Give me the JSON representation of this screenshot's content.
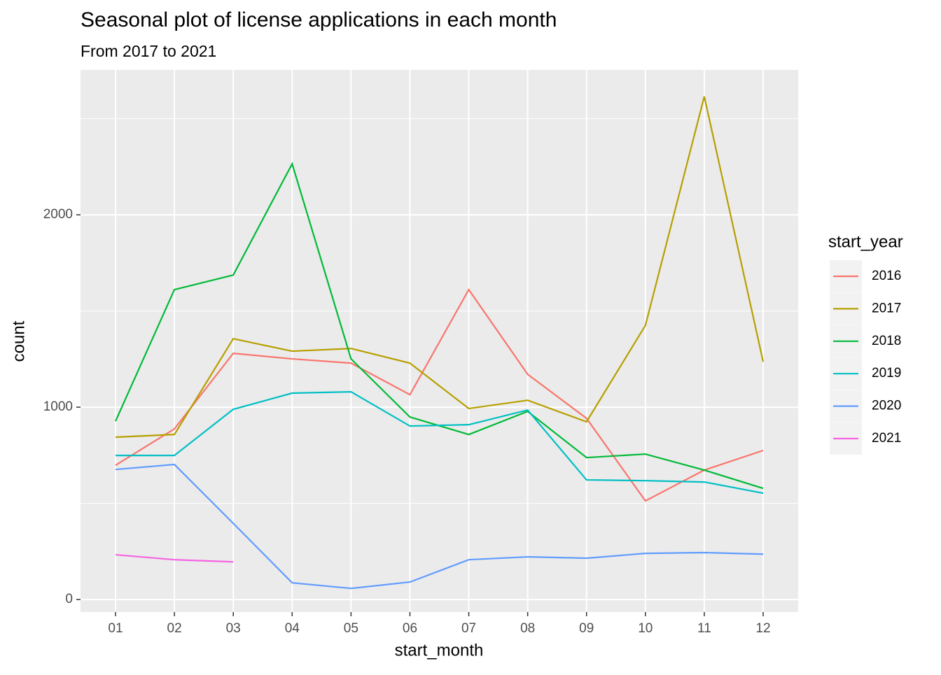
{
  "chart_data": {
    "type": "line",
    "title": "Seasonal plot of license applications in each month",
    "subtitle": "From 2017 to 2021",
    "x_label": "start_month",
    "y_label": "count",
    "legend_title": "start_year",
    "categories": [
      "01",
      "02",
      "03",
      "04",
      "05",
      "06",
      "07",
      "08",
      "09",
      "10",
      "11",
      "12"
    ],
    "series": [
      {
        "name": "2016",
        "color": "#F8766D",
        "values": [
          698,
          887,
          1280,
          1251,
          1229,
          1065,
          1611,
          1171,
          942,
          513,
          673,
          775
        ]
      },
      {
        "name": "2017",
        "color": "#B79F00",
        "values": [
          844,
          858,
          1356,
          1291,
          1305,
          1229,
          993,
          1036,
          924,
          1425,
          2615,
          1236
        ]
      },
      {
        "name": "2018",
        "color": "#00BA38",
        "values": [
          927,
          1611,
          1687,
          2265,
          1251,
          949,
          858,
          978,
          738,
          756,
          673,
          578
        ]
      },
      {
        "name": "2019",
        "color": "#00BFC4",
        "values": [
          749,
          749,
          989,
          1073,
          1080,
          902,
          909,
          985,
          622,
          618,
          611,
          553
        ]
      },
      {
        "name": "2020",
        "color": "#619CFF",
        "values": [
          676,
          702,
          396,
          87,
          58,
          91,
          207,
          222,
          215,
          240,
          244,
          236
        ]
      },
      {
        "name": "2021",
        "color": "#F564E3",
        "values": [
          233,
          207,
          196,
          null,
          null,
          null,
          null,
          null,
          null,
          null,
          null,
          null
        ]
      }
    ],
    "ylim": [
      -65,
      2753
    ],
    "yticks": [
      0,
      1000,
      2000
    ],
    "yminor": [
      500,
      1500,
      2500
    ],
    "grid": true,
    "legend": "right"
  }
}
